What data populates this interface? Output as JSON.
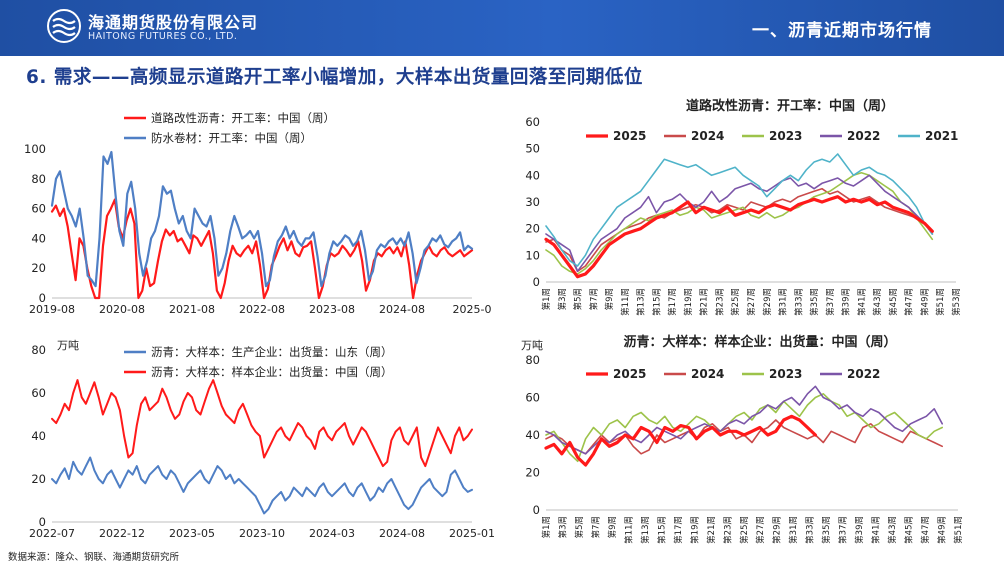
{
  "header": {
    "company_cn": "海通期货股份有限公司",
    "company_en": "HAITONG FUTURES CO., LTD.",
    "section": "一、沥青近期市场行情"
  },
  "page": {
    "heading": "6. 需求——高频显示道路开工率小幅增加，大样本出货量回落至同期低位",
    "source": "数据来源：隆众、钢联、海通期货研究所"
  },
  "colors": {
    "header": "#2458b8",
    "heading": "#1f3f8f",
    "red": "#ff1a1a",
    "blue": "#4f7fc5"
  },
  "chart_data": [
    {
      "id": "c1",
      "type": "line",
      "title": "",
      "unit": "",
      "ylim": [
        0,
        100
      ],
      "yticks": [
        0,
        20,
        40,
        60,
        80,
        100
      ],
      "xticks": [
        "2019-08",
        "2020-08",
        "2021-08",
        "2022-08",
        "2023-08",
        "2024-08",
        "2025-0"
      ],
      "series": [
        {
          "name": "道路改性沥青：开工率：中国（周）",
          "color": "#ff1a1a",
          "width": 2.2,
          "values": [
            58,
            62,
            55,
            60,
            48,
            30,
            12,
            40,
            35,
            20,
            8,
            0,
            0,
            35,
            55,
            60,
            66,
            48,
            40,
            52,
            60,
            50,
            0,
            5,
            20,
            8,
            10,
            25,
            38,
            46,
            42,
            45,
            38,
            40,
            35,
            30,
            42,
            40,
            35,
            40,
            45,
            30,
            5,
            0,
            10,
            25,
            35,
            30,
            28,
            32,
            35,
            30,
            38,
            22,
            0,
            6,
            22,
            28,
            35,
            40,
            32,
            38,
            30,
            28,
            34,
            35,
            38,
            20,
            0,
            8,
            22,
            30,
            28,
            30,
            35,
            32,
            28,
            32,
            38,
            25,
            5,
            12,
            25,
            30,
            28,
            32,
            34,
            30,
            34,
            28,
            38,
            22,
            0,
            15,
            25,
            30,
            35,
            30,
            28,
            32,
            34,
            30,
            28,
            30,
            32,
            28,
            30,
            32
          ]
        },
        {
          "name": "防水卷材：开工率：中国（周）",
          "color": "#4f7fc5",
          "width": 2.2,
          "values": [
            62,
            80,
            85,
            72,
            60,
            55,
            48,
            60,
            40,
            15,
            12,
            8,
            40,
            95,
            90,
            98,
            70,
            45,
            35,
            70,
            78,
            60,
            30,
            15,
            25,
            40,
            45,
            55,
            75,
            70,
            72,
            60,
            50,
            55,
            45,
            40,
            60,
            55,
            50,
            48,
            55,
            40,
            15,
            20,
            30,
            45,
            55,
            48,
            40,
            42,
            45,
            40,
            45,
            30,
            8,
            12,
            28,
            38,
            42,
            48,
            40,
            45,
            38,
            35,
            40,
            40,
            44,
            28,
            8,
            15,
            30,
            38,
            35,
            38,
            42,
            40,
            35,
            38,
            45,
            32,
            12,
            18,
            32,
            36,
            34,
            38,
            40,
            36,
            40,
            35,
            44,
            30,
            10,
            20,
            32,
            35,
            40,
            38,
            42,
            36,
            34,
            38,
            40,
            44,
            32,
            35,
            33
          ]
        }
      ]
    },
    {
      "id": "c2",
      "type": "line",
      "title": "道路改性沥青：开工率：中国（周）",
      "unit": "",
      "ylim": [
        0,
        60
      ],
      "yticks": [
        0,
        10,
        20,
        30,
        40,
        50,
        60
      ],
      "xticks": [
        "第1周",
        "第3周",
        "第5周",
        "第7周",
        "第9周",
        "第11周",
        "第13周",
        "第15周",
        "第17周",
        "第19周",
        "第21周",
        "第23周",
        "第25周",
        "第27周",
        "第29周",
        "第31周",
        "第33周",
        "第35周",
        "第37周",
        "第39周",
        "第41周",
        "第43周",
        "第45周",
        "第47周",
        "第49周",
        "第51周",
        "第53周"
      ],
      "series": [
        {
          "name": "2025",
          "color": "#ff1a1a",
          "width": 3.2,
          "values": [
            16,
            14,
            10,
            6,
            2,
            3,
            6,
            10,
            14,
            16,
            18,
            19,
            20,
            22,
            24,
            25,
            26,
            28,
            30,
            26,
            28,
            27,
            26,
            28,
            25,
            26,
            27,
            26,
            28,
            29,
            28,
            27,
            29,
            30,
            31,
            30,
            31,
            32,
            30,
            31,
            30,
            31,
            29,
            30,
            28,
            27,
            26,
            24,
            22,
            19
          ]
        },
        {
          "name": "2024",
          "color": "#c94a4a",
          "width": 1.6,
          "values": [
            15,
            16,
            12,
            10,
            4,
            6,
            10,
            14,
            16,
            18,
            20,
            21,
            22,
            24,
            25,
            24,
            26,
            27,
            28,
            29,
            28,
            26,
            27,
            29,
            28,
            27,
            30,
            29,
            28,
            30,
            31,
            30,
            32,
            33,
            34,
            35,
            33,
            34,
            32,
            30,
            31,
            32,
            30,
            28,
            27,
            26,
            25,
            24,
            22,
            18
          ]
        },
        {
          "name": "2023",
          "color": "#9dc34a",
          "width": 1.6,
          "values": [
            12,
            10,
            6,
            4,
            3,
            5,
            8,
            12,
            15,
            18,
            20,
            22,
            24,
            23,
            25,
            26,
            27,
            25,
            26,
            28,
            27,
            24,
            25,
            26,
            27,
            28,
            25,
            24,
            26,
            24,
            25,
            27,
            28,
            30,
            32,
            33,
            34,
            36,
            38,
            40,
            41,
            40,
            38,
            36,
            34,
            30,
            28,
            24,
            20,
            16
          ]
        },
        {
          "name": "2022",
          "color": "#7b55a8",
          "width": 1.6,
          "values": [
            18,
            16,
            14,
            12,
            4,
            8,
            12,
            16,
            18,
            20,
            24,
            26,
            28,
            32,
            26,
            30,
            31,
            33,
            30,
            28,
            30,
            34,
            30,
            32,
            35,
            36,
            37,
            35,
            34,
            36,
            38,
            39,
            36,
            37,
            35,
            37,
            38,
            39,
            37,
            36,
            38,
            40,
            37,
            34,
            32,
            30,
            28,
            25,
            22,
            18
          ]
        },
        {
          "name": "2021",
          "color": "#4fb3c9",
          "width": 1.6,
          "values": [
            21,
            17,
            12,
            8,
            6,
            10,
            16,
            20,
            24,
            28,
            30,
            32,
            34,
            38,
            42,
            46,
            45,
            44,
            43,
            44,
            42,
            40,
            41,
            42,
            43,
            40,
            38,
            36,
            32,
            35,
            38,
            40,
            38,
            42,
            45,
            46,
            45,
            48,
            44,
            40,
            42,
            43,
            41,
            40,
            38,
            35,
            32,
            28,
            22,
            18
          ]
        }
      ]
    },
    {
      "id": "c3",
      "type": "line",
      "title": "",
      "unit": "万吨",
      "ylim": [
        0,
        80
      ],
      "yticks": [
        0,
        20,
        40,
        60,
        80
      ],
      "xticks": [
        "2022-07",
        "2022-12",
        "2023-05",
        "2023-10",
        "2024-03",
        "2024-08",
        "2025-01"
      ],
      "series": [
        {
          "name": "沥青：大样本：生产企业：出货量：山东（周）",
          "color": "#4f7fc5",
          "width": 2,
          "values": [
            20,
            18,
            22,
            25,
            20,
            28,
            24,
            22,
            26,
            30,
            24,
            20,
            18,
            22,
            24,
            20,
            16,
            20,
            24,
            22,
            26,
            20,
            18,
            22,
            24,
            26,
            22,
            20,
            24,
            22,
            18,
            14,
            18,
            20,
            22,
            24,
            20,
            18,
            22,
            26,
            24,
            20,
            22,
            18,
            20,
            18,
            16,
            14,
            12,
            8,
            4,
            6,
            10,
            12,
            14,
            10,
            12,
            16,
            14,
            12,
            16,
            14,
            12,
            16,
            18,
            14,
            12,
            14,
            16,
            18,
            14,
            12,
            16,
            18,
            14,
            10,
            12,
            16,
            14,
            18,
            20,
            16,
            12,
            8,
            6,
            8,
            12,
            16,
            18,
            20,
            16,
            14,
            12,
            14,
            22,
            24,
            20,
            16,
            14,
            15
          ]
        },
        {
          "name": "沥青：大样本：样本企业：出货量：中国（周）",
          "color": "#ff1a1a",
          "width": 2,
          "values": [
            48,
            46,
            50,
            55,
            52,
            60,
            66,
            58,
            55,
            60,
            65,
            58,
            50,
            55,
            60,
            58,
            52,
            40,
            30,
            32,
            45,
            55,
            58,
            52,
            54,
            56,
            62,
            58,
            52,
            48,
            50,
            56,
            60,
            58,
            52,
            50,
            56,
            62,
            66,
            60,
            54,
            50,
            48,
            46,
            52,
            55,
            50,
            45,
            42,
            40,
            30,
            34,
            38,
            42,
            44,
            40,
            38,
            42,
            46,
            44,
            40,
            38,
            34,
            42,
            44,
            40,
            38,
            42,
            44,
            46,
            40,
            36,
            40,
            44,
            42,
            38,
            34,
            30,
            26,
            28,
            38,
            42,
            44,
            38,
            36,
            40,
            44,
            30,
            26,
            32,
            38,
            44,
            40,
            36,
            32,
            40,
            44,
            38,
            40,
            43
          ]
        }
      ]
    },
    {
      "id": "c4",
      "type": "line",
      "title": "沥青：大样本：样本企业：出货量：中国（周）",
      "unit": "万吨",
      "ylim": [
        0,
        80
      ],
      "yticks": [
        0,
        20,
        40,
        60,
        80
      ],
      "xticks": [
        "第1周",
        "第3周",
        "第5周",
        "第7周",
        "第9周",
        "第11周",
        "第13周",
        "第15周",
        "第17周",
        "第19周",
        "第21周",
        "第23周",
        "第25周",
        "第27周",
        "第29周",
        "第31周",
        "第33周",
        "第35周",
        "第37周",
        "第39周",
        "第41周",
        "第43周",
        "第45周",
        "第47周",
        "第49周",
        "第51周"
      ],
      "series": [
        {
          "name": "2025",
          "color": "#ff1a1a",
          "width": 3.2,
          "values": [
            33,
            35,
            30,
            36,
            28,
            24,
            30,
            38,
            34,
            36,
            40,
            38,
            44,
            42,
            36,
            44,
            42,
            45,
            44,
            38,
            42,
            44,
            40,
            42,
            42,
            40,
            42,
            44,
            40,
            42,
            48,
            50,
            48,
            44,
            40
          ]
        },
        {
          "name": "2024",
          "color": "#c94a4a",
          "width": 1.6,
          "values": [
            38,
            40,
            38,
            34,
            32,
            30,
            35,
            40,
            36,
            38,
            40,
            34,
            30,
            32,
            40,
            36,
            38,
            40,
            42,
            38,
            44,
            46,
            42,
            44,
            38,
            40,
            36,
            42,
            44,
            48,
            44,
            42,
            40,
            38,
            40,
            36,
            42,
            40,
            38,
            36,
            44,
            46,
            42,
            40,
            38,
            36,
            42,
            40,
            38,
            36,
            34
          ]
        },
        {
          "name": "2023",
          "color": "#9dc34a",
          "width": 1.6,
          "values": [
            40,
            42,
            36,
            30,
            26,
            38,
            44,
            40,
            46,
            48,
            44,
            50,
            52,
            48,
            46,
            50,
            44,
            42,
            46,
            50,
            48,
            44,
            42,
            46,
            50,
            52,
            48,
            54,
            56,
            52,
            58,
            54,
            50,
            56,
            60,
            62,
            58,
            56,
            50,
            52,
            48,
            44,
            46,
            50,
            52,
            48,
            44,
            40,
            38,
            42,
            44
          ]
        },
        {
          "name": "2022",
          "color": "#7b55a8",
          "width": 1.6,
          "values": [
            42,
            40,
            36,
            34,
            32,
            30,
            34,
            38,
            36,
            40,
            42,
            38,
            36,
            40,
            44,
            42,
            40,
            38,
            42,
            44,
            46,
            44,
            42,
            46,
            48,
            46,
            50,
            52,
            56,
            54,
            58,
            60,
            56,
            62,
            66,
            60,
            58,
            54,
            56,
            52,
            50,
            54,
            52,
            48,
            44,
            42,
            46,
            48,
            50,
            54,
            46
          ]
        }
      ]
    }
  ]
}
